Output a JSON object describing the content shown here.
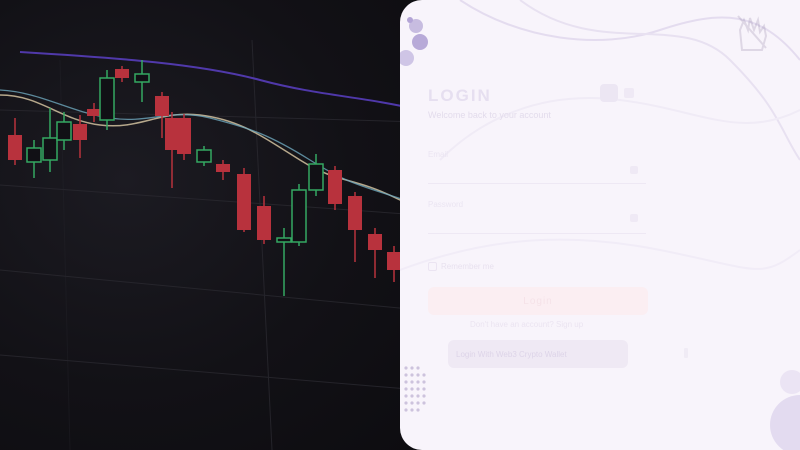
{
  "hero": {
    "description_icon": "candlestick-chart",
    "colors": {
      "up": "#34a862",
      "down": "#b8323d",
      "ma_fast": "#d9c9a6",
      "ma_slow": "#7fb3c9",
      "trend": "#6b4fd6"
    }
  },
  "login": {
    "title": "LOGIN",
    "subtitle": "Welcome back to your account",
    "top_hint": "",
    "email_label": "Email",
    "email_placeholder": "",
    "password_label": "Password",
    "password_placeholder": "",
    "remember_label": "Remember me",
    "forgot_label": "",
    "login_button": "Login",
    "signup_text": "Don't have an account? Sign up",
    "wallet_button": "Login With Web3 Crypto Wallet"
  },
  "icons": {
    "brand": "hand-logo-icon",
    "eye": "eye-icon",
    "mail": "mail-icon"
  }
}
